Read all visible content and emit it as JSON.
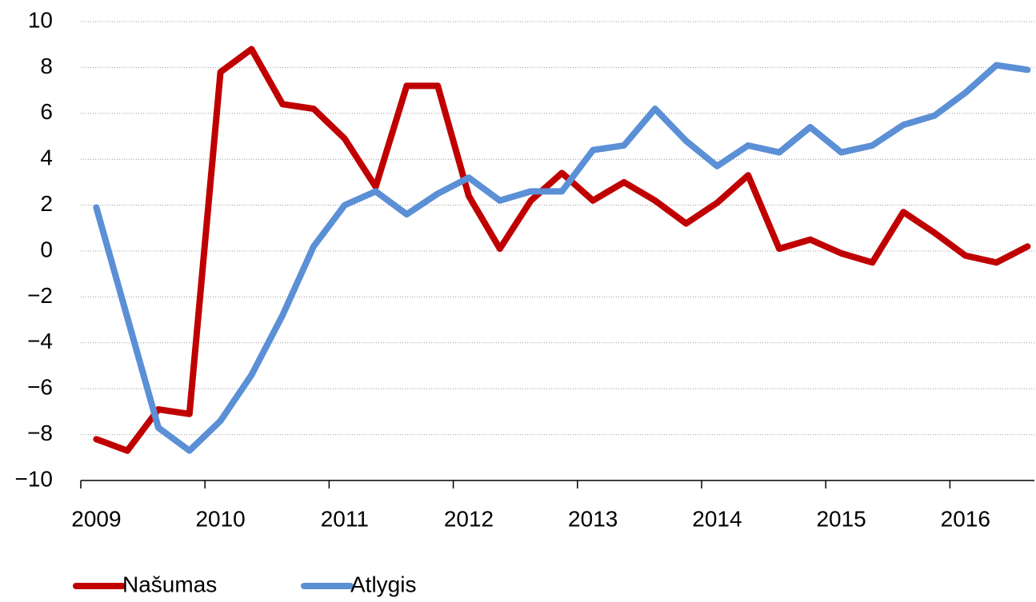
{
  "chart_data": {
    "type": "line",
    "categories": [
      "2009",
      null,
      null,
      null,
      "2010",
      null,
      null,
      null,
      "2011",
      null,
      null,
      null,
      "2012",
      null,
      null,
      null,
      "2013",
      null,
      null,
      null,
      "2014",
      null,
      null,
      null,
      "2015",
      null,
      null,
      null,
      "2016",
      null,
      null
    ],
    "series": [
      {
        "name": "Našumas",
        "color": "#c00000",
        "values": [
          -8.2,
          -8.7,
          -6.9,
          -7.1,
          7.8,
          8.8,
          6.4,
          6.2,
          4.9,
          2.8,
          7.2,
          7.2,
          2.4,
          0.1,
          2.2,
          3.4,
          2.2,
          3.0,
          2.2,
          1.2,
          2.1,
          3.3,
          0.1,
          0.5,
          -0.1,
          -0.5,
          1.7,
          0.8,
          -0.2,
          -0.5,
          0.2
        ]
      },
      {
        "name": "Atlygis",
        "color": "#5b8fd6",
        "values": [
          1.9,
          -2.9,
          -7.7,
          -8.7,
          -7.4,
          -5.4,
          -2.8,
          0.2,
          2.0,
          2.6,
          1.6,
          2.5,
          3.2,
          2.2,
          2.6,
          2.6,
          4.4,
          4.6,
          6.2,
          4.8,
          3.7,
          4.6,
          4.3,
          5.4,
          4.3,
          4.6,
          5.5,
          5.9,
          6.9,
          8.1,
          7.9
        ]
      }
    ],
    "ylim": [
      -10,
      10
    ],
    "yticks": [
      {
        "value": -10,
        "label": "−10"
      },
      {
        "value": -8,
        "label": "−8"
      },
      {
        "value": -6,
        "label": "−6"
      },
      {
        "value": -4,
        "label": "−4"
      },
      {
        "value": -2,
        "label": "−2"
      },
      0,
      2,
      4,
      6,
      8,
      10
    ],
    "grid": true,
    "legend": "bottom"
  }
}
